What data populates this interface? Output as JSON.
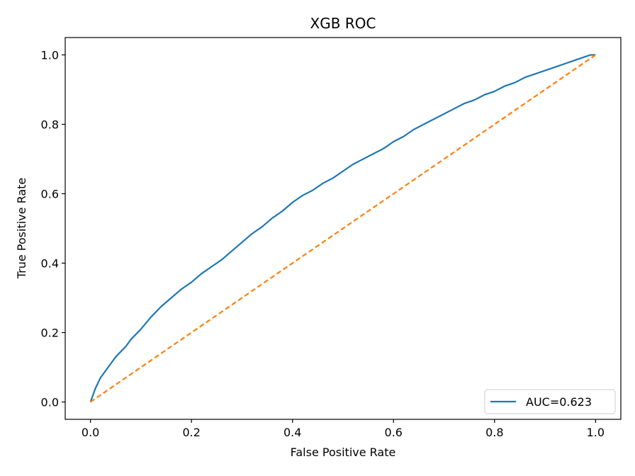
{
  "chart_data": {
    "type": "line",
    "title": "XGB ROC",
    "xlabel": "False Positive Rate",
    "ylabel": "True Positive Rate",
    "xlim": [
      -0.05,
      1.05
    ],
    "ylim": [
      -0.05,
      1.05
    ],
    "x_ticks": [
      "0.0",
      "0.2",
      "0.4",
      "0.6",
      "0.8",
      "1.0"
    ],
    "y_ticks": [
      "0.0",
      "0.2",
      "0.4",
      "0.6",
      "0.8",
      "1.0"
    ],
    "grid": false,
    "legend_placement": "lower-right",
    "series": [
      {
        "name": "AUC=0.623",
        "color": "#1f77b4",
        "style": "solid",
        "x": [
          0.0,
          0.005,
          0.01,
          0.015,
          0.02,
          0.03,
          0.04,
          0.05,
          0.06,
          0.07,
          0.08,
          0.09,
          0.1,
          0.12,
          0.14,
          0.16,
          0.18,
          0.2,
          0.22,
          0.24,
          0.26,
          0.28,
          0.3,
          0.32,
          0.34,
          0.36,
          0.38,
          0.4,
          0.42,
          0.44,
          0.46,
          0.48,
          0.5,
          0.52,
          0.54,
          0.56,
          0.58,
          0.6,
          0.62,
          0.64,
          0.66,
          0.68,
          0.7,
          0.72,
          0.74,
          0.76,
          0.78,
          0.8,
          0.82,
          0.84,
          0.86,
          0.88,
          0.9,
          0.92,
          0.94,
          0.96,
          0.98,
          0.99,
          1.0
        ],
        "y": [
          0.0,
          0.02,
          0.04,
          0.055,
          0.07,
          0.09,
          0.11,
          0.13,
          0.145,
          0.16,
          0.18,
          0.195,
          0.21,
          0.245,
          0.275,
          0.3,
          0.325,
          0.345,
          0.37,
          0.39,
          0.41,
          0.435,
          0.46,
          0.485,
          0.505,
          0.53,
          0.55,
          0.575,
          0.595,
          0.61,
          0.63,
          0.645,
          0.665,
          0.685,
          0.7,
          0.715,
          0.73,
          0.75,
          0.765,
          0.785,
          0.8,
          0.815,
          0.83,
          0.845,
          0.86,
          0.87,
          0.885,
          0.895,
          0.91,
          0.92,
          0.935,
          0.945,
          0.955,
          0.965,
          0.975,
          0.985,
          0.995,
          1.0,
          1.0
        ]
      },
      {
        "name": "",
        "color": "#ff7f0e",
        "style": "dashed",
        "x": [
          0.0,
          1.0
        ],
        "y": [
          0.0,
          1.0
        ]
      }
    ]
  }
}
